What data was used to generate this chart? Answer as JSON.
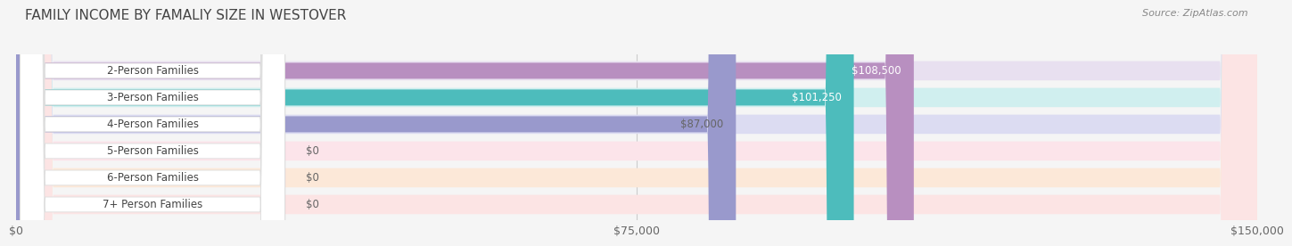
{
  "title": "FAMILY INCOME BY FAMALIY SIZE IN WESTOVER",
  "source": "Source: ZipAtlas.com",
  "categories": [
    "2-Person Families",
    "3-Person Families",
    "4-Person Families",
    "5-Person Families",
    "6-Person Families",
    "7+ Person Families"
  ],
  "values": [
    108500,
    101250,
    87000,
    0,
    0,
    0
  ],
  "bar_colors": [
    "#b88fc0",
    "#4dbcbc",
    "#9999cc",
    "#f4a0b5",
    "#f5c896",
    "#f4a8a8"
  ],
  "bar_bg_colors": [
    "#e8e0f0",
    "#d0efef",
    "#dcdcf2",
    "#fce4ea",
    "#fce8d8",
    "#fce4e4"
  ],
  "label_colors": [
    "white",
    "white",
    "#666666",
    "#666666",
    "#666666",
    "#666666"
  ],
  "xlim": [
    0,
    150000
  ],
  "xticks": [
    0,
    75000,
    150000
  ],
  "xticklabels": [
    "$0",
    "$75,000",
    "$150,000"
  ],
  "background_color": "#f5f5f5",
  "title_fontsize": 11,
  "tick_fontsize": 9,
  "label_fontsize": 8.5,
  "value_fontsize": 8.5
}
